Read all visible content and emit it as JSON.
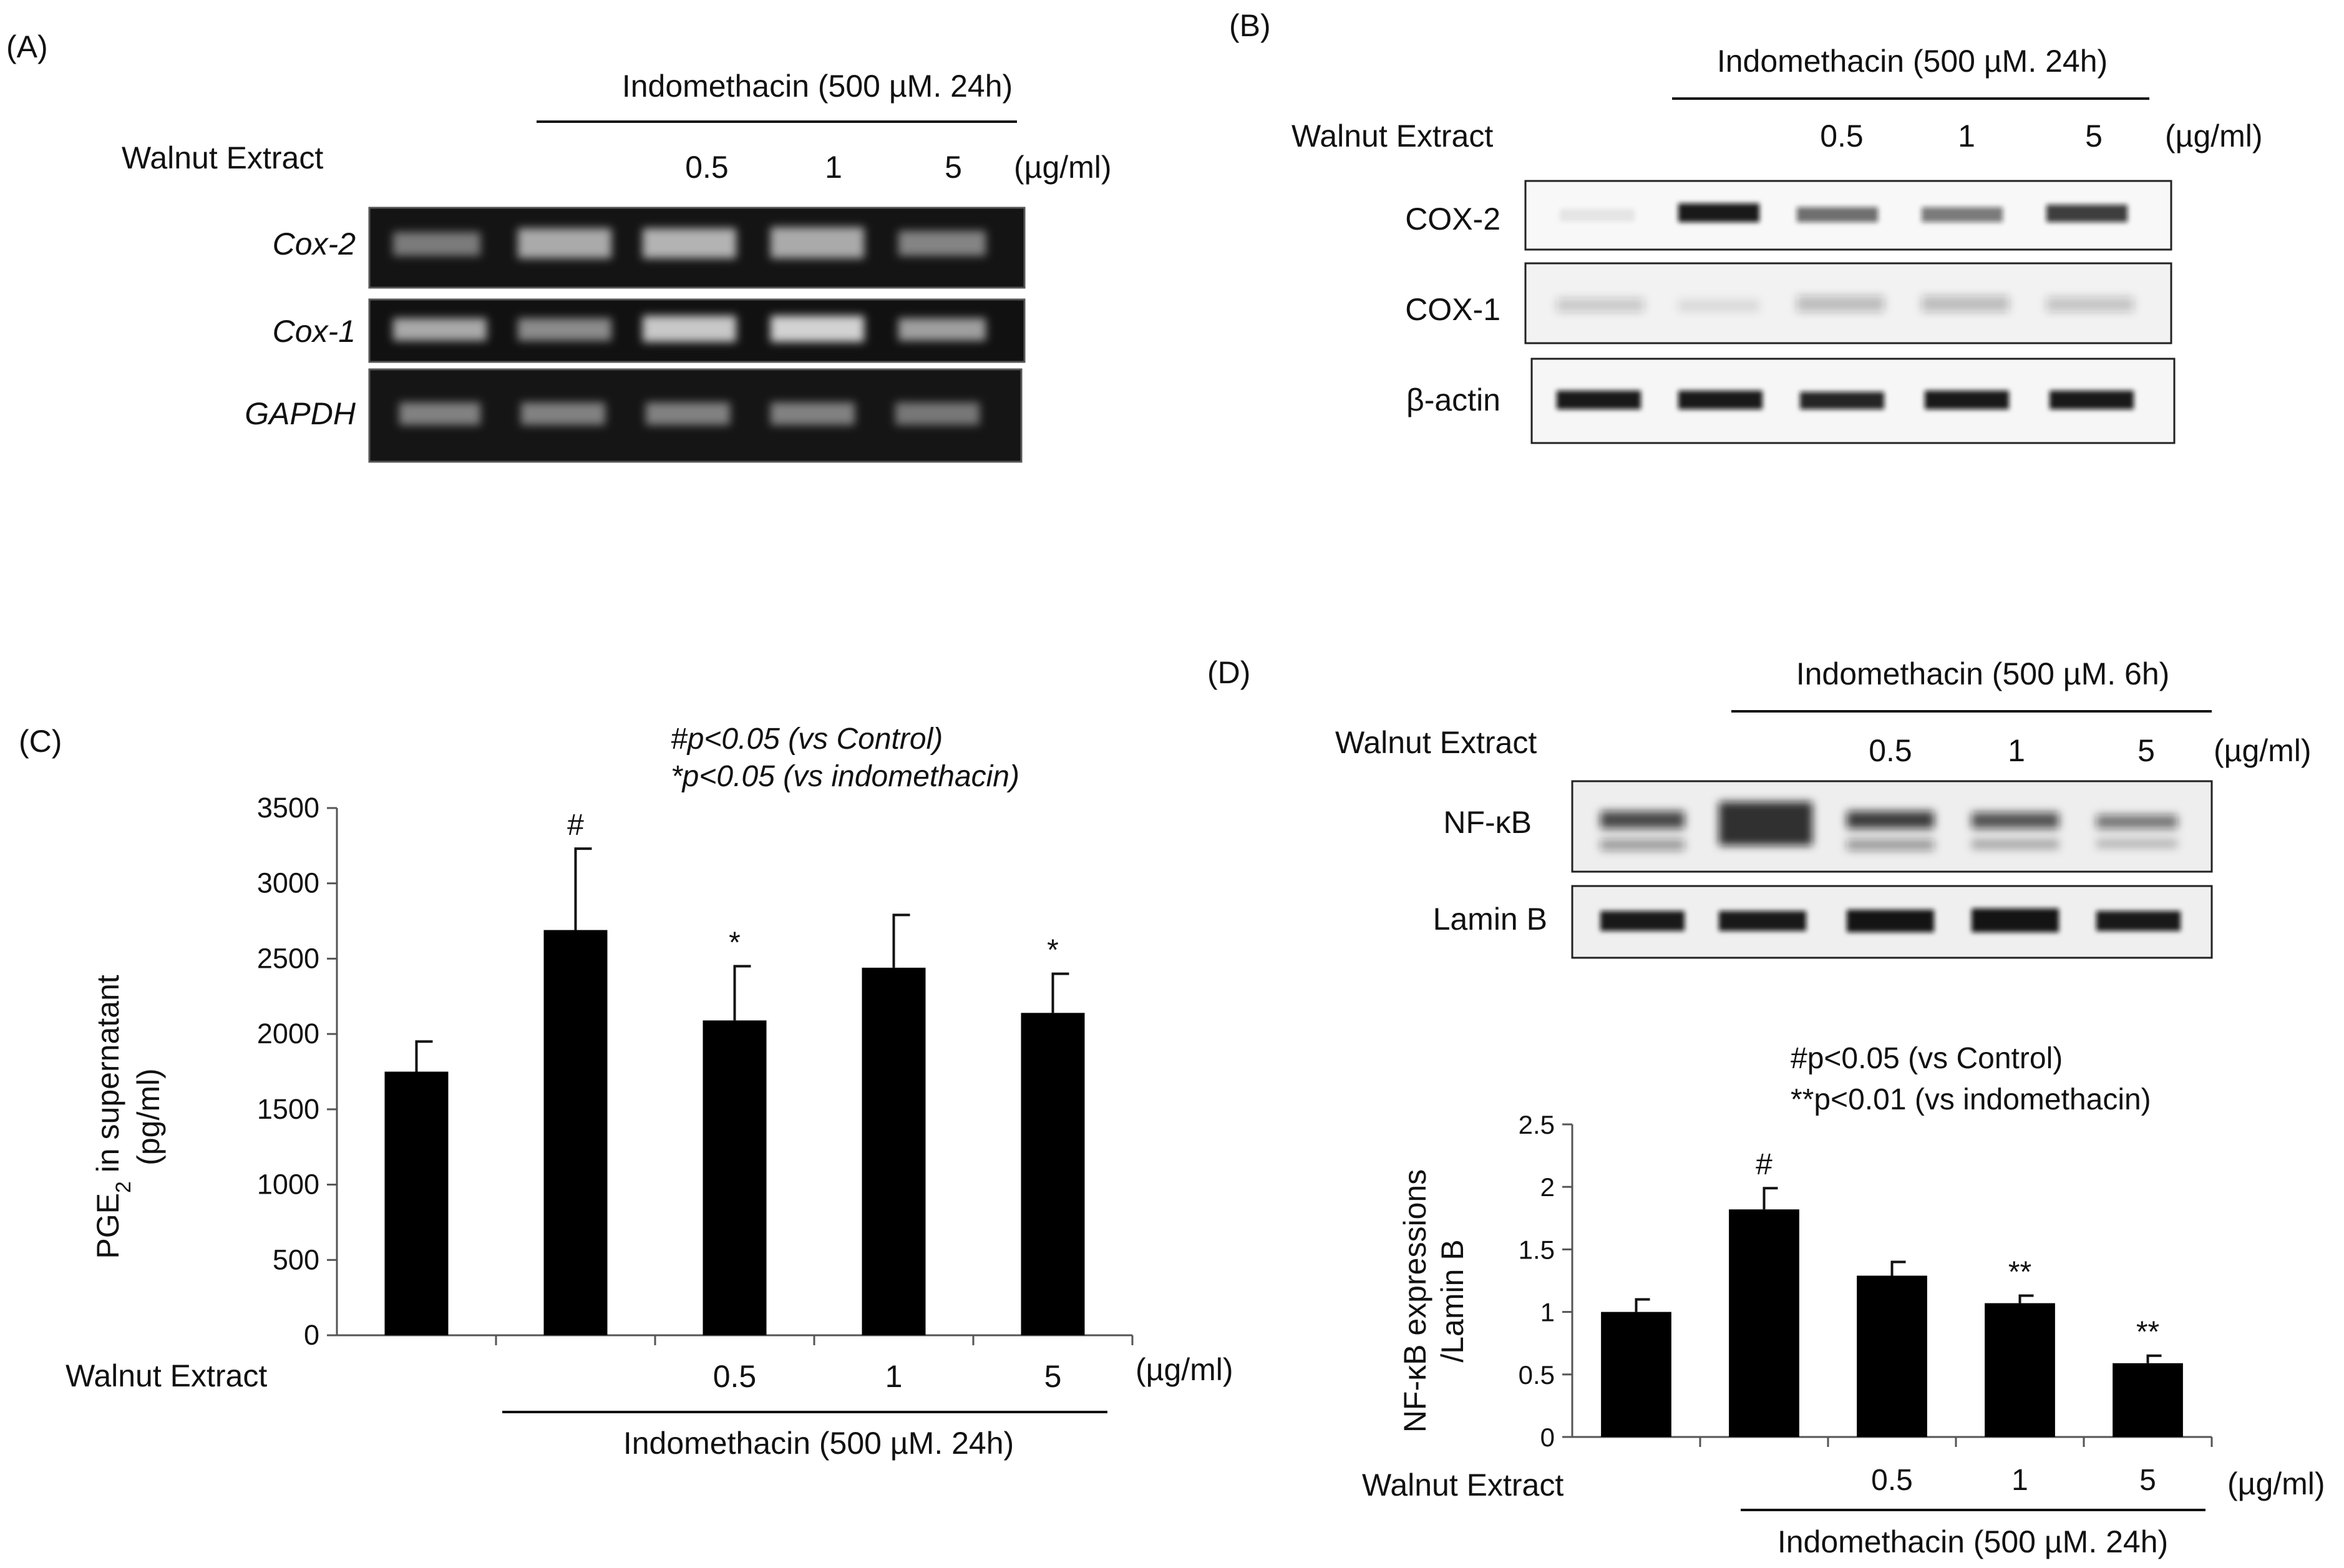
{
  "panels": {
    "A": {
      "label": "(A)",
      "treatment": "Indomethacin  (500 µM. 24h)",
      "row_label": "Walnut Extract",
      "doses": [
        "0.5",
        "1",
        "5"
      ],
      "unit": "(µg/ml)",
      "bands": [
        "Cox-2",
        "Cox-1",
        "GAPDH"
      ]
    },
    "B": {
      "label": "(B)",
      "treatment": "Indomethacin  (500 µM. 24h)",
      "row_label": "Walnut Extract",
      "doses": [
        "0.5",
        "1",
        "5"
      ],
      "unit": "(µg/ml)",
      "bands": [
        "COX-2",
        "COX-1",
        "β-actin"
      ]
    },
    "D": {
      "label": "(D)",
      "treatment": "Indomethacin (500 µM. 6h)",
      "row_label": "Walnut Extract",
      "doses": [
        "0.5",
        "1",
        "5"
      ],
      "unit": "(µg/ml)",
      "bands": [
        "NF-κB",
        "Lamin B"
      ]
    }
  },
  "chart_data": [
    {
      "type": "bar",
      "panel_label": "(C)",
      "categories": [
        "",
        "",
        "0.5",
        "1",
        "5"
      ],
      "values": [
        1750,
        2690,
        2090,
        2440,
        2140
      ],
      "errors": [
        200,
        540,
        360,
        350,
        260
      ],
      "significance": [
        "",
        "#",
        "*",
        "",
        "*"
      ],
      "annotations": [
        "#p<0.05 (vs Control)",
        "*p<0.05 (vs indomethacin)"
      ],
      "ylabel_main": "PGE",
      "ylabel_sub": "2",
      "ylabel_rest": " in supernatant",
      "ylabel_line2": "(pg/ml)",
      "row_label": "Walnut Extract",
      "unit": "(µg/ml)",
      "treatment": "Indomethacin  (500 µM. 24h)",
      "ylim": [
        0,
        3500
      ],
      "yticks": [
        0,
        500,
        1000,
        1500,
        2000,
        2500,
        3000,
        3500
      ],
      "bar_color": "#000000"
    },
    {
      "type": "bar",
      "panel_label": "",
      "categories": [
        "",
        "",
        "0.5",
        "1",
        "5"
      ],
      "values": [
        1.0,
        1.82,
        1.29,
        1.07,
        0.59
      ],
      "errors": [
        0.1,
        0.17,
        0.11,
        0.06,
        0.06
      ],
      "significance": [
        "",
        "#",
        "",
        "**",
        "**"
      ],
      "annotations": [
        "#p<0.05 (vs Control)",
        "**p<0.01 (vs indomethacin)"
      ],
      "ylabel_line1": "NF-κB expressions",
      "ylabel_line2": "/Lamin B",
      "row_label": "Walnut Extract",
      "unit": "(µg/ml)",
      "treatment": "Indomethacin  (500 µM. 24h)",
      "ylim": [
        0,
        2.5
      ],
      "yticks": [
        0,
        0.5,
        1,
        1.5,
        2,
        2.5
      ],
      "bar_color": "#000000"
    }
  ]
}
